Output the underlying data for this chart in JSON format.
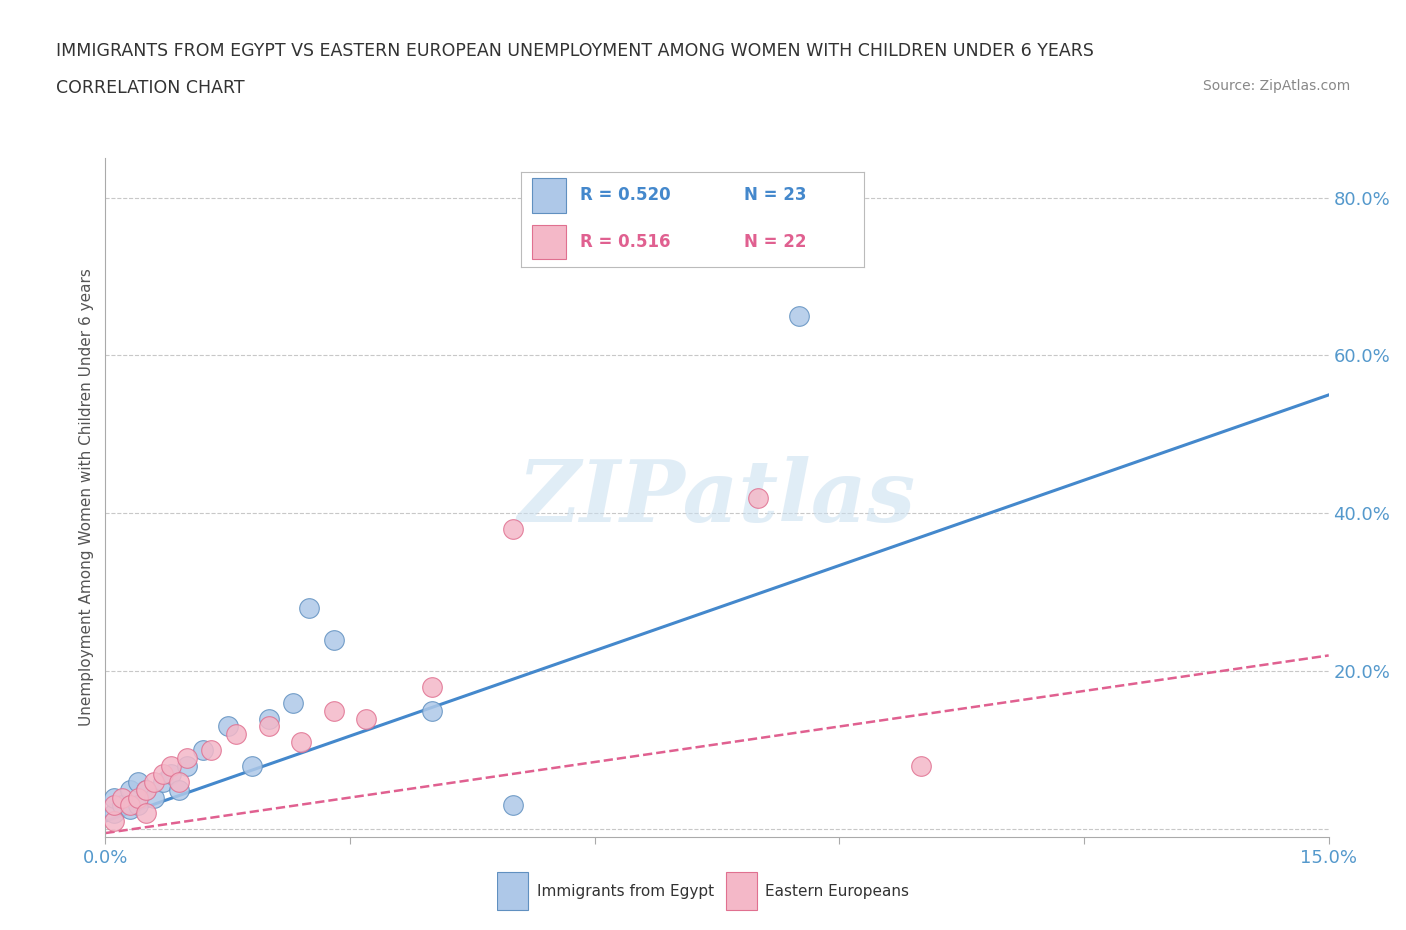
{
  "title_line1": "IMMIGRANTS FROM EGYPT VS EASTERN EUROPEAN UNEMPLOYMENT AMONG WOMEN WITH CHILDREN UNDER 6 YEARS",
  "title_line2": "CORRELATION CHART",
  "source_text": "Source: ZipAtlas.com",
  "ylabel": "Unemployment Among Women with Children Under 6 years",
  "xlim": [
    0.0,
    0.15
  ],
  "ylim": [
    -0.01,
    0.85
  ],
  "yticks": [
    0.0,
    0.2,
    0.4,
    0.6,
    0.8
  ],
  "background_color": "#ffffff",
  "grid_color": "#c8c8c8",
  "watermark": "ZIPatlas",
  "legend_r1": "R = 0.520",
  "legend_n1": "N = 23",
  "legend_r2": "R = 0.516",
  "legend_n2": "N = 22",
  "series1_color": "#aec8e8",
  "series2_color": "#f4b8c8",
  "series1_label": "Immigrants from Egypt",
  "series2_label": "Eastern Europeans",
  "series1_edge": "#6090c0",
  "series2_edge": "#e07090",
  "trendline1_color": "#4488cc",
  "trendline2_color": "#e06090",
  "blue_scatter_x": [
    0.001,
    0.001,
    0.002,
    0.003,
    0.003,
    0.004,
    0.004,
    0.005,
    0.006,
    0.007,
    0.008,
    0.009,
    0.01,
    0.012,
    0.015,
    0.018,
    0.02,
    0.023,
    0.025,
    0.028,
    0.04,
    0.05,
    0.085
  ],
  "blue_scatter_y": [
    0.02,
    0.04,
    0.03,
    0.025,
    0.05,
    0.03,
    0.06,
    0.05,
    0.04,
    0.06,
    0.07,
    0.05,
    0.08,
    0.1,
    0.13,
    0.08,
    0.14,
    0.16,
    0.28,
    0.24,
    0.15,
    0.03,
    0.65
  ],
  "pink_scatter_x": [
    0.001,
    0.001,
    0.002,
    0.003,
    0.004,
    0.005,
    0.005,
    0.006,
    0.007,
    0.008,
    0.009,
    0.01,
    0.013,
    0.016,
    0.02,
    0.024,
    0.028,
    0.032,
    0.04,
    0.05,
    0.08,
    0.1
  ],
  "pink_scatter_y": [
    0.01,
    0.03,
    0.04,
    0.03,
    0.04,
    0.05,
    0.02,
    0.06,
    0.07,
    0.08,
    0.06,
    0.09,
    0.1,
    0.12,
    0.13,
    0.11,
    0.15,
    0.14,
    0.18,
    0.38,
    0.42,
    0.08
  ],
  "trendline1_x": [
    0.0,
    0.15
  ],
  "trendline1_y": [
    0.01,
    0.55
  ],
  "trendline2_x": [
    0.0,
    0.15
  ],
  "trendline2_y": [
    -0.005,
    0.22
  ]
}
